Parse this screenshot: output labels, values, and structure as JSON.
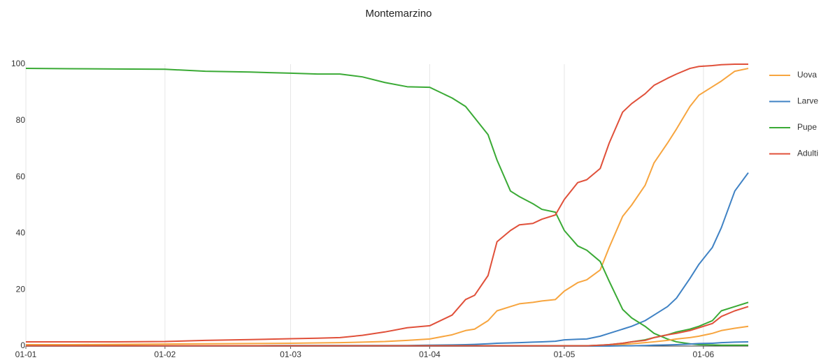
{
  "chart_data": {
    "type": "line",
    "title": "Montemarzino",
    "x": [
      0,
      10,
      20,
      31,
      40,
      50,
      59,
      65,
      70,
      75,
      80,
      85,
      90,
      95,
      98,
      100,
      103,
      105,
      108,
      110,
      113,
      115,
      118,
      120,
      123,
      125,
      128,
      130,
      133,
      135,
      138,
      140,
      143,
      145,
      148,
      150,
      153,
      155,
      158,
      161
    ],
    "xlim": [
      0,
      161
    ],
    "xticks": [
      {
        "value": 0,
        "label": "01-01"
      },
      {
        "value": 31,
        "label": "01-02"
      },
      {
        "value": 59,
        "label": "01-03"
      },
      {
        "value": 90,
        "label": "01-04"
      },
      {
        "value": 120,
        "label": "01-05"
      },
      {
        "value": 151,
        "label": "01-06"
      }
    ],
    "ylim": [
      0,
      100
    ],
    "yticks": [
      0,
      20,
      40,
      60,
      80,
      100
    ],
    "grid": "x",
    "legend": "right",
    "series": [
      {
        "name": "Uova",
        "color": "#f7a53f",
        "values": [
          0.5,
          0.5,
          0.6,
          0.7,
          0.8,
          0.9,
          1,
          1.1,
          1.2,
          1.4,
          1.6,
          2,
          2.5,
          4,
          5.5,
          6,
          9,
          12.5,
          14,
          15,
          15.5,
          16,
          16.5,
          19.5,
          22.5,
          23.5,
          27,
          35,
          46,
          50,
          57,
          65,
          72,
          77,
          85,
          89,
          92,
          94,
          97.5,
          98.5
        ]
      },
      {
        "name": "Larve",
        "color": "#3f82c4",
        "values": [
          0.1,
          0.1,
          0.1,
          0.1,
          0.1,
          0.1,
          0.2,
          0.2,
          0.2,
          0.2,
          0.2,
          0.2,
          0.3,
          0.4,
          0.5,
          0.6,
          0.8,
          1,
          1.1,
          1.2,
          1.4,
          1.5,
          1.7,
          2.2,
          2.4,
          2.5,
          3.5,
          4.5,
          6,
          7,
          9,
          11,
          14,
          17,
          24,
          29,
          35,
          42,
          55,
          61.5
        ]
      },
      {
        "name": "Pupe",
        "color": "#3aaa35",
        "values": [
          98.5,
          98.4,
          98.3,
          98.2,
          97.5,
          97.2,
          96.8,
          96.5,
          96.5,
          95.5,
          93.5,
          92,
          91.8,
          88,
          85,
          81,
          75,
          66,
          55,
          53,
          50.5,
          48.5,
          47.5,
          41,
          35.5,
          34,
          30,
          23,
          13,
          10,
          7,
          4.5,
          2.5,
          1.5,
          0.8,
          0.5,
          0.4,
          0.3,
          0.3,
          0.3
        ]
      },
      {
        "name": "Adulti",
        "color": "#e0503a",
        "values": [
          1.5,
          1.5,
          1.5,
          1.6,
          2,
          2.3,
          2.6,
          2.8,
          3,
          3.8,
          5,
          6.5,
          7.2,
          11,
          16.5,
          18,
          25,
          37,
          41,
          43,
          43.5,
          45,
          46.5,
          52,
          58,
          59,
          63,
          72,
          83,
          86,
          89.5,
          92.5,
          95,
          96.5,
          98.5,
          99.2,
          99.5,
          99.8,
          100,
          100
        ]
      },
      {
        "name": "Uova",
        "color": "#f7a53f",
        "values": [
          0.1,
          0.1,
          0.1,
          0.1,
          0.1,
          0.1,
          0.1,
          0.1,
          0.1,
          0.1,
          0.1,
          0.1,
          0.1,
          0.1,
          0.1,
          0.1,
          0.1,
          0.1,
          0.1,
          0.1,
          0.1,
          0.1,
          0.1,
          0.1,
          0.1,
          0.1,
          0.2,
          0.4,
          0.6,
          0.8,
          1.2,
          1.5,
          2,
          2.5,
          3,
          3.5,
          4.5,
          5.5,
          6.3,
          7
        ]
      },
      {
        "name": "Larve",
        "color": "#3f82c4",
        "values": [
          0,
          0,
          0,
          0,
          0,
          0,
          0,
          0,
          0,
          0,
          0,
          0,
          0,
          0,
          0,
          0,
          0,
          0,
          0,
          0,
          0,
          0,
          0,
          0,
          0,
          0,
          0,
          0,
          0.1,
          0.1,
          0.2,
          0.3,
          0.4,
          0.5,
          0.7,
          0.9,
          1,
          1.2,
          1.4,
          1.5
        ]
      },
      {
        "name": "Pupe",
        "color": "#3aaa35",
        "values": [
          0.1,
          0.1,
          0.1,
          0.1,
          0.1,
          0.1,
          0.1,
          0.1,
          0.1,
          0.1,
          0.1,
          0.1,
          0.1,
          0.1,
          0.1,
          0.1,
          0.1,
          0.1,
          0.1,
          0.1,
          0.1,
          0.1,
          0.1,
          0.1,
          0.1,
          0.1,
          0.3,
          0.5,
          1,
          1.5,
          2.2,
          3,
          4,
          5,
          6,
          7,
          9,
          12.5,
          14,
          15.5
        ]
      },
      {
        "name": "Adulti",
        "color": "#e0503a",
        "values": [
          0.1,
          0.1,
          0.1,
          0.1,
          0.1,
          0.1,
          0.1,
          0.1,
          0.1,
          0.1,
          0.1,
          0.1,
          0.1,
          0.1,
          0.1,
          0.1,
          0.1,
          0.1,
          0.1,
          0.1,
          0.1,
          0.1,
          0.1,
          0.1,
          0.1,
          0.1,
          0.3,
          0.5,
          1,
          1.5,
          2,
          3,
          4,
          4.5,
          5.5,
          6.5,
          8,
          10.5,
          12.5,
          14
        ]
      }
    ]
  }
}
